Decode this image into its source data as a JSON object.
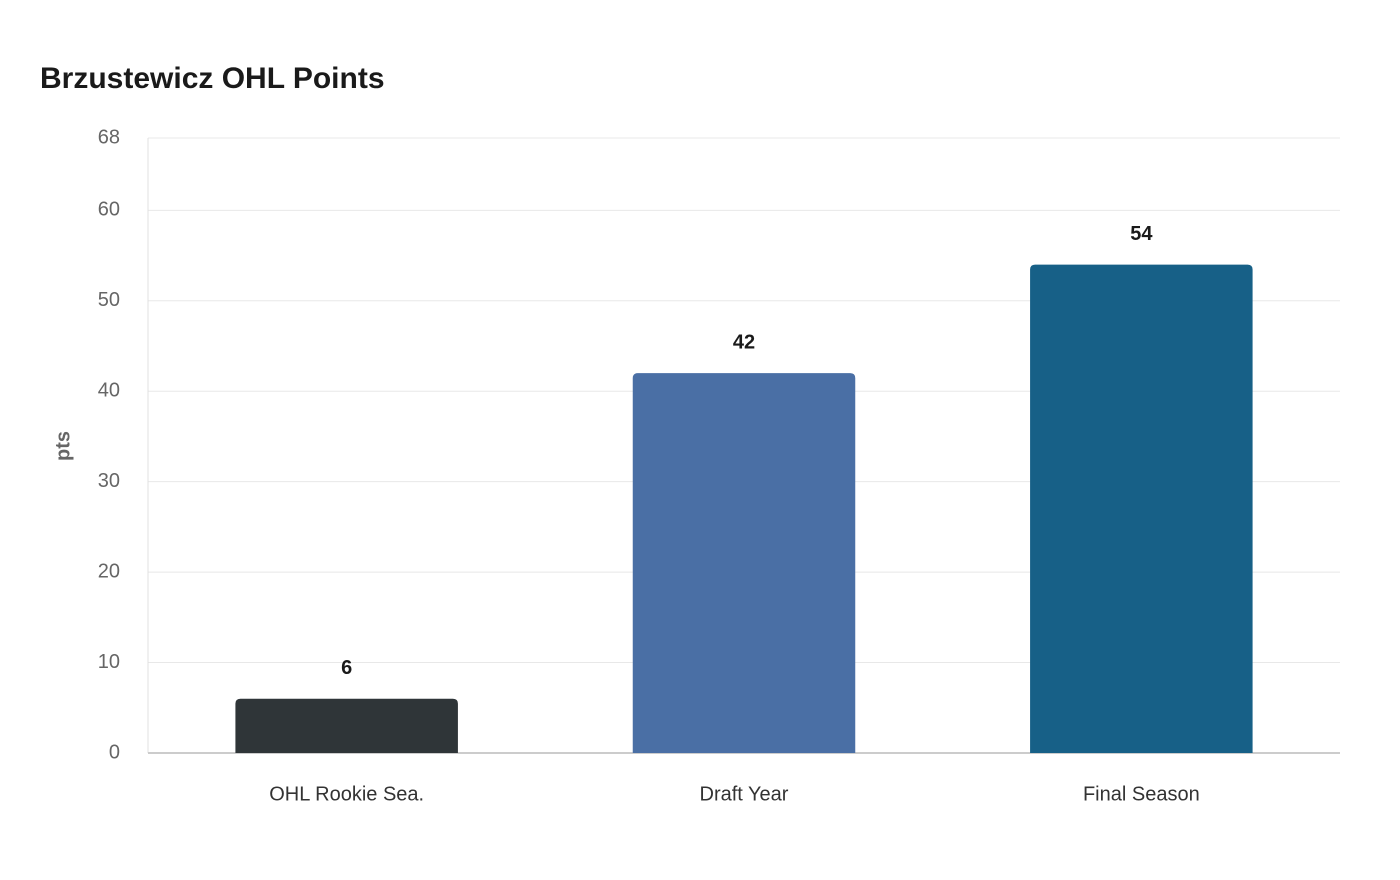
{
  "chart_data": {
    "type": "bar",
    "title": "Brzustewicz OHL Points",
    "y_label": "pts",
    "categories": [
      "OHL Rookie Sea.",
      "Draft Year",
      "Final Season"
    ],
    "values": [
      6,
      42,
      54
    ],
    "colors": [
      "#2f3538",
      "#4a6fa5",
      "#176087"
    ],
    "ylim": [
      0,
      68
    ],
    "yticks": [
      0,
      10,
      20,
      30,
      40,
      50,
      60,
      68
    ],
    "grid": true
  }
}
